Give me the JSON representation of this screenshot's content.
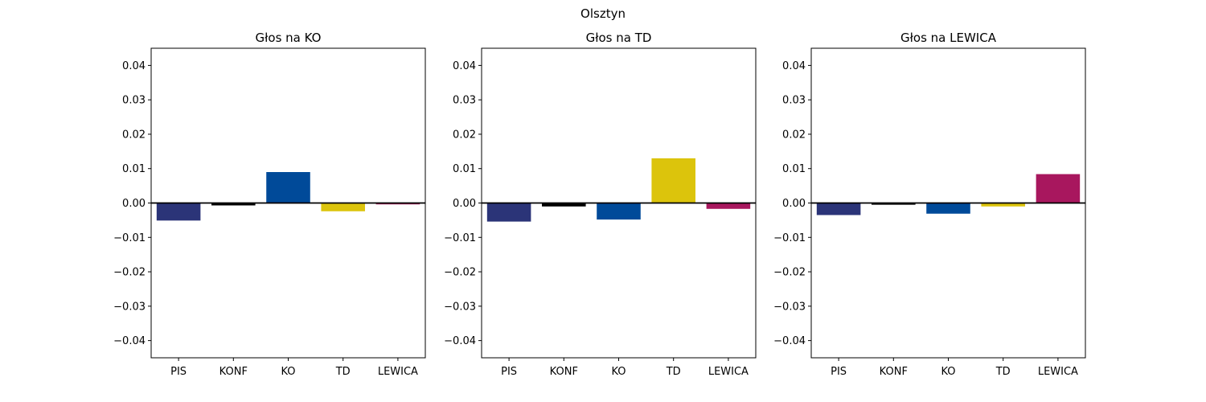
{
  "figure_title": "Olsztyn",
  "chart_data": [
    {
      "type": "bar",
      "title": "Głos na KO",
      "xlabel": "",
      "ylabel": "",
      "categories": [
        "PIS",
        "KONF",
        "KO",
        "TD",
        "LEWICA"
      ],
      "values": [
        -0.0051,
        -0.0007,
        0.009,
        -0.0024,
        -0.0004
      ],
      "colors": [
        "#2b3478",
        "#000000",
        "#004a99",
        "#dcc40c",
        "#a8175e"
      ],
      "ylim": [
        -0.045,
        0.045
      ],
      "yticks": [
        "0.04",
        "0.03",
        "0.02",
        "0.01",
        "0.00",
        "−0.01",
        "−0.02",
        "−0.03",
        "−0.04"
      ],
      "ytick_values": [
        0.04,
        0.03,
        0.02,
        0.01,
        0.0,
        -0.01,
        -0.02,
        -0.03,
        -0.04
      ],
      "grid": false,
      "zero_line": true
    },
    {
      "type": "bar",
      "title": "Głos na TD",
      "xlabel": "",
      "ylabel": "",
      "categories": [
        "PIS",
        "KONF",
        "KO",
        "TD",
        "LEWICA"
      ],
      "values": [
        -0.0054,
        -0.001,
        -0.0048,
        0.013,
        -0.0017
      ],
      "colors": [
        "#2b3478",
        "#000000",
        "#004a99",
        "#dcc40c",
        "#a8175e"
      ],
      "ylim": [
        -0.045,
        0.045
      ],
      "yticks": [
        "0.04",
        "0.03",
        "0.02",
        "0.01",
        "0.00",
        "−0.01",
        "−0.02",
        "−0.03",
        "−0.04"
      ],
      "ytick_values": [
        0.04,
        0.03,
        0.02,
        0.01,
        0.0,
        -0.01,
        -0.02,
        -0.03,
        -0.04
      ],
      "grid": false,
      "zero_line": true
    },
    {
      "type": "bar",
      "title": "Głos na LEWICA",
      "xlabel": "",
      "ylabel": "",
      "categories": [
        "PIS",
        "KONF",
        "KO",
        "TD",
        "LEWICA"
      ],
      "values": [
        -0.0035,
        -0.0005,
        -0.0031,
        -0.001,
        0.0084
      ],
      "colors": [
        "#2b3478",
        "#000000",
        "#004a99",
        "#dcc40c",
        "#a8175e"
      ],
      "ylim": [
        -0.045,
        0.045
      ],
      "yticks": [
        "0.04",
        "0.03",
        "0.02",
        "0.01",
        "0.00",
        "−0.01",
        "−0.02",
        "−0.03",
        "−0.04"
      ],
      "ytick_values": [
        0.04,
        0.03,
        0.02,
        0.01,
        0.0,
        -0.01,
        -0.02,
        -0.03,
        -0.04
      ],
      "grid": false,
      "zero_line": true
    }
  ]
}
